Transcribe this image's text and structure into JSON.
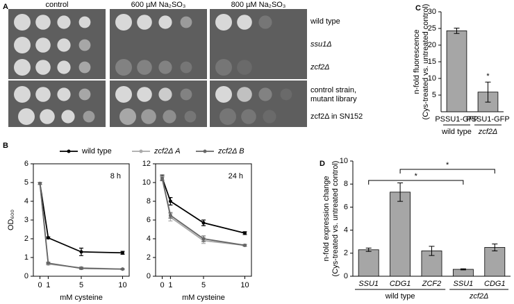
{
  "panel_labels": [
    "A",
    "B",
    "C",
    "D"
  ],
  "panel_a": {
    "columns": [
      "control",
      "600 µM Na₂SO₃",
      "800 µM Na₂SO₃"
    ],
    "rows": [
      "wild type",
      "ssu1Δ",
      "zcf2Δ",
      "control strain, mutant library",
      "zcf2Δ in SN152"
    ]
  },
  "chart_data": [
    {
      "type": "line",
      "ylabel": "OD₆₀₀",
      "xlabel": "mM cysteine",
      "annotation": "8 h",
      "x": [
        0,
        1,
        5,
        10
      ],
      "xlim": [
        -0.8,
        10.8
      ],
      "xticks": [
        0,
        1,
        5,
        10
      ],
      "ylim": [
        0,
        6
      ],
      "yticks": [
        0,
        1,
        2,
        3,
        4,
        5,
        6
      ],
      "series": [
        {
          "name": "wild type",
          "color": "#000000",
          "values": [
            4.95,
            2.05,
            1.3,
            1.25
          ],
          "errors": [
            0.05,
            0.05,
            0.2,
            0.08
          ]
        },
        {
          "name": "zcf2Δ A",
          "color": "#aaaaaa",
          "values": [
            4.95,
            0.65,
            0.45,
            0.38
          ],
          "errors": [
            0.05,
            0.05,
            0.05,
            0.03
          ]
        },
        {
          "name": "zcf2Δ B",
          "color": "#666666",
          "values": [
            4.95,
            0.7,
            0.42,
            0.38
          ],
          "errors": [
            0.05,
            0.05,
            0.05,
            0.03
          ]
        }
      ]
    },
    {
      "type": "line",
      "xlabel": "mM cysteine",
      "annotation": "24 h",
      "x": [
        0,
        1,
        5,
        10
      ],
      "xlim": [
        -0.8,
        10.8
      ],
      "xticks": [
        0,
        1,
        5,
        10
      ],
      "ylim": [
        0,
        12
      ],
      "yticks": [
        0,
        2,
        4,
        6,
        8,
        10,
        12
      ],
      "series": [
        {
          "name": "wild type",
          "color": "#000000",
          "values": [
            10.5,
            8.0,
            5.7,
            4.6
          ],
          "errors": [
            0.3,
            0.4,
            0.3,
            0.15
          ]
        },
        {
          "name": "zcf2Δ A",
          "color": "#aaaaaa",
          "values": [
            10.5,
            6.3,
            3.8,
            3.3
          ],
          "errors": [
            0.2,
            0.4,
            0.3,
            0.1
          ]
        },
        {
          "name": "zcf2Δ B",
          "color": "#666666",
          "values": [
            10.4,
            6.5,
            4.0,
            3.3
          ],
          "errors": [
            0.2,
            0.3,
            0.3,
            0.1
          ]
        }
      ]
    },
    {
      "type": "bar",
      "ylabel": [
        "n-fold fluorescence",
        "(Cys-treated vs. untreated control)"
      ],
      "categories": [
        "PSSU1-GFP",
        "PSSU1-GFP"
      ],
      "groups": [
        "wild type",
        "zcf2Δ"
      ],
      "values": [
        24.3,
        5.9
      ],
      "errors": [
        0.8,
        3.0
      ],
      "color": "#a6a6a6",
      "ylim": [
        0,
        30
      ],
      "yticks": [
        5,
        10,
        15,
        20,
        25,
        30
      ],
      "annotations": [
        "*"
      ]
    },
    {
      "type": "bar",
      "ylabel": [
        "n-fold expression change",
        "(Cys-treated vs. untreated control)"
      ],
      "categories": [
        "SSU1",
        "CDG1",
        "ZCF2",
        "SSU1",
        "CDG1"
      ],
      "groups": [
        "wild type",
        "zcf2Δ"
      ],
      "values": [
        2.3,
        7.3,
        2.2,
        0.6,
        2.5
      ],
      "errors": [
        0.15,
        0.8,
        0.4,
        0.05,
        0.3
      ],
      "color": "#a6a6a6",
      "ylim": [
        0,
        10
      ],
      "yticks": [
        0,
        2,
        4,
        6,
        8,
        10
      ],
      "annotations": [
        "*",
        "*"
      ]
    }
  ]
}
